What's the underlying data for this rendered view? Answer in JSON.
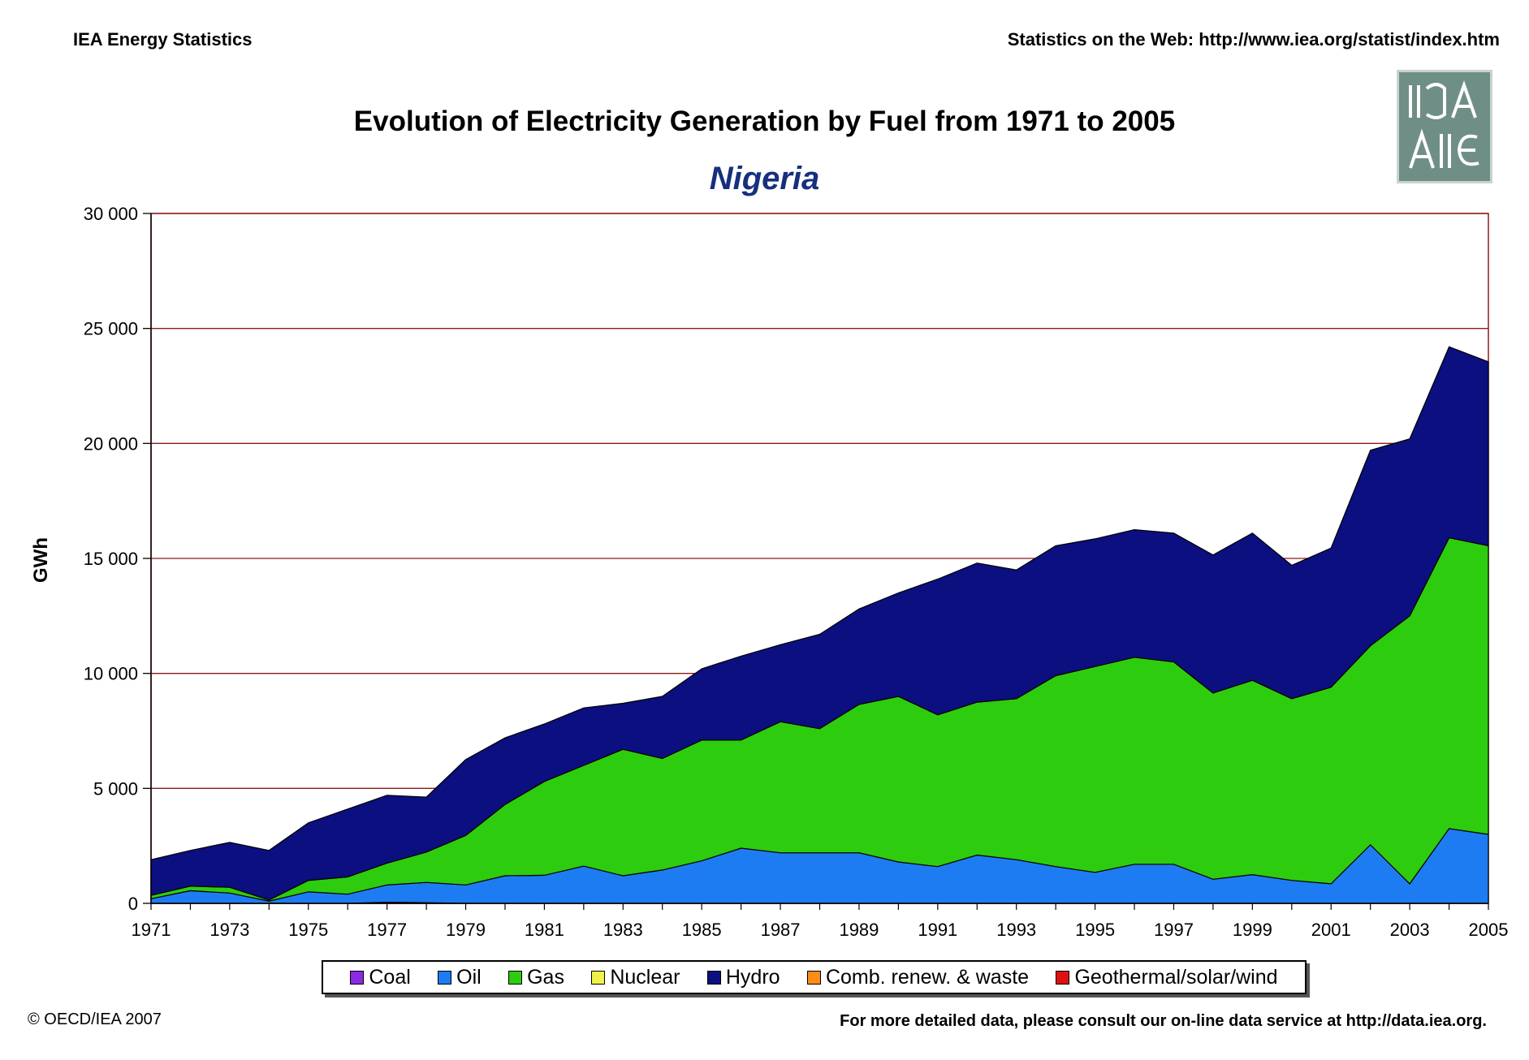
{
  "header": {
    "left": "IEA Energy Statistics",
    "right": "Statistics on the Web: http://www.iea.org/statist/index.htm"
  },
  "footer": {
    "left": "© OECD/IEA 2007",
    "right": "For more detailed data, please consult our on-line data service at http://data.iea.org."
  },
  "logo": {
    "icon": "iea-logo-icon",
    "color": "#6f8f86"
  },
  "chart_data": {
    "type": "area",
    "stacked": true,
    "title": "Evolution of Electricity Generation by Fuel from 1971 to 2005",
    "subtitle": "Nigeria",
    "ylabel": "GWh",
    "xlabel": "",
    "ylim": [
      0,
      30000
    ],
    "yticks": [
      0,
      5000,
      10000,
      15000,
      20000,
      25000,
      30000
    ],
    "ytick_labels": [
      "0",
      "5 000",
      "10 000",
      "15 000",
      "20 000",
      "25 000",
      "30 000"
    ],
    "x": [
      1971,
      1972,
      1973,
      1974,
      1975,
      1976,
      1977,
      1978,
      1979,
      1980,
      1981,
      1982,
      1983,
      1984,
      1985,
      1986,
      1987,
      1988,
      1989,
      1990,
      1991,
      1992,
      1993,
      1994,
      1995,
      1996,
      1997,
      1998,
      1999,
      2000,
      2001,
      2002,
      2003,
      2004,
      2005
    ],
    "xtick_labels": [
      "1971",
      "1973",
      "1975",
      "1977",
      "1979",
      "1981",
      "1983",
      "1985",
      "1987",
      "1989",
      "1991",
      "1993",
      "1995",
      "1997",
      "1999",
      "2001",
      "2003",
      "2005"
    ],
    "grid": true,
    "legend_position": "bottom",
    "series": [
      {
        "name": "Coal",
        "color": "#8a2be2",
        "values": [
          0,
          0,
          0,
          0,
          0,
          0,
          50,
          30,
          0,
          0,
          0,
          0,
          0,
          0,
          0,
          0,
          0,
          0,
          0,
          0,
          0,
          0,
          0,
          0,
          0,
          0,
          0,
          0,
          0,
          0,
          0,
          0,
          0,
          0,
          0
        ]
      },
      {
        "name": "Oil",
        "color": "#1e7cf2",
        "values": [
          200,
          550,
          450,
          100,
          500,
          400,
          750,
          880,
          800,
          1200,
          1220,
          1620,
          1200,
          1450,
          1850,
          2400,
          2200,
          2200,
          2200,
          1800,
          1600,
          2100,
          1900,
          1600,
          1350,
          1700,
          1700,
          1050,
          1250,
          1000,
          850,
          2550,
          850,
          3250,
          3000
        ]
      },
      {
        "name": "Gas",
        "color": "#2ecc0f",
        "values": [
          150,
          200,
          250,
          50,
          500,
          750,
          950,
          1320,
          2150,
          3100,
          4080,
          4380,
          5500,
          4850,
          5250,
          4700,
          5700,
          5400,
          6450,
          7200,
          6600,
          6650,
          7000,
          8300,
          8950,
          9000,
          8800,
          8100,
          8450,
          7900,
          8550,
          8650,
          11650,
          12650,
          12550
        ]
      },
      {
        "name": "Nuclear",
        "color": "#f0f24a",
        "values": [
          0,
          0,
          0,
          0,
          0,
          0,
          0,
          0,
          0,
          0,
          0,
          0,
          0,
          0,
          0,
          0,
          0,
          0,
          0,
          0,
          0,
          0,
          0,
          0,
          0,
          0,
          0,
          0,
          0,
          0,
          0,
          0,
          0,
          0,
          0
        ]
      },
      {
        "name": "Hydro",
        "color": "#0b0f80",
        "values": [
          1550,
          1550,
          1950,
          2150,
          2500,
          2950,
          2950,
          2390,
          3300,
          2900,
          2500,
          2500,
          2000,
          2700,
          3100,
          3650,
          3350,
          4100,
          4150,
          4500,
          5900,
          6050,
          5600,
          5650,
          5550,
          5550,
          5600,
          6000,
          6400,
          5800,
          6050,
          8500,
          7700,
          8300,
          8000
        ]
      },
      {
        "name": "Comb. renew. & waste",
        "color": "#ff8c1a",
        "values": [
          0,
          0,
          0,
          0,
          0,
          0,
          0,
          0,
          0,
          0,
          0,
          0,
          0,
          0,
          0,
          0,
          0,
          0,
          0,
          0,
          0,
          0,
          0,
          0,
          0,
          0,
          0,
          0,
          0,
          0,
          0,
          0,
          0,
          0,
          0
        ]
      },
      {
        "name": "Geothermal/solar/wind",
        "color": "#e01010",
        "values": [
          0,
          0,
          0,
          0,
          0,
          0,
          0,
          0,
          0,
          0,
          0,
          0,
          0,
          0,
          0,
          0,
          0,
          0,
          0,
          0,
          0,
          0,
          0,
          0,
          0,
          0,
          0,
          0,
          0,
          0,
          0,
          0,
          0,
          0,
          0
        ]
      }
    ]
  }
}
